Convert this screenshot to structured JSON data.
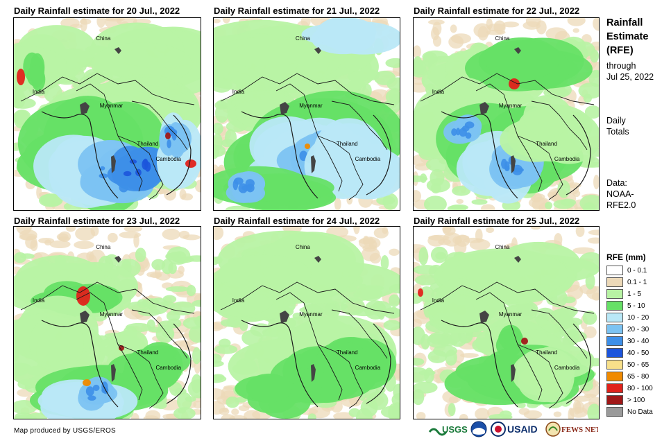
{
  "panels": [
    {
      "title": "Daily Rainfall estimate for 20 Jul., 2022"
    },
    {
      "title": "Daily Rainfall estimate for 21 Jul., 2022"
    },
    {
      "title": "Daily Rainfall estimate for 22 Jul., 2022"
    },
    {
      "title": "Daily Rainfall estimate for 23 Jul., 2022"
    },
    {
      "title": "Daily Rainfall estimate for 24 Jul., 2022"
    },
    {
      "title": "Daily Rainfall estimate for 25 Jul., 2022"
    }
  ],
  "map_labels": {
    "china": "China",
    "india": "India",
    "myanmar": "Myanmar",
    "thailand": "Thailand",
    "cambodia": "Cambodia"
  },
  "sidebar": {
    "title_line1": "Rainfall",
    "title_line2": "Estimate",
    "title_line3": "(RFE)",
    "through_label": "through",
    "through_date": "Jul 25, 2022",
    "daily_line1": "Daily",
    "daily_line2": "Totals",
    "data_line1": "Data:",
    "data_line2": "NOAA-",
    "data_line3": "RFE2.0"
  },
  "legend": {
    "title": "RFE (mm)",
    "items": [
      {
        "label": "0 - 0.1",
        "color": "#ffffff"
      },
      {
        "label": "0.1 - 1",
        "color": "#ecd9b8"
      },
      {
        "label": "1 - 5",
        "color": "#b8f3a4"
      },
      {
        "label": "5 - 10",
        "color": "#66e066"
      },
      {
        "label": "10 - 20",
        "color": "#b9e8f7"
      },
      {
        "label": "20 - 30",
        "color": "#7cc3f2"
      },
      {
        "label": "30 - 40",
        "color": "#3d8fe8"
      },
      {
        "label": "40 - 50",
        "color": "#1c55dc"
      },
      {
        "label": "50 - 65",
        "color": "#f8e08a"
      },
      {
        "label": "65 - 80",
        "color": "#f08a00"
      },
      {
        "label": "80 - 100",
        "color": "#e0221b"
      },
      {
        "label": "> 100",
        "color": "#a01818"
      },
      {
        "label": "No Data",
        "color": "#9a9a9a"
      }
    ]
  },
  "footer": {
    "credit": "Map produced by USGS/EROS",
    "logo_usgs": "USGS",
    "logo_noaa": "NOAA",
    "logo_usaid": "USAID",
    "logo_fews": "FEWS NET"
  }
}
